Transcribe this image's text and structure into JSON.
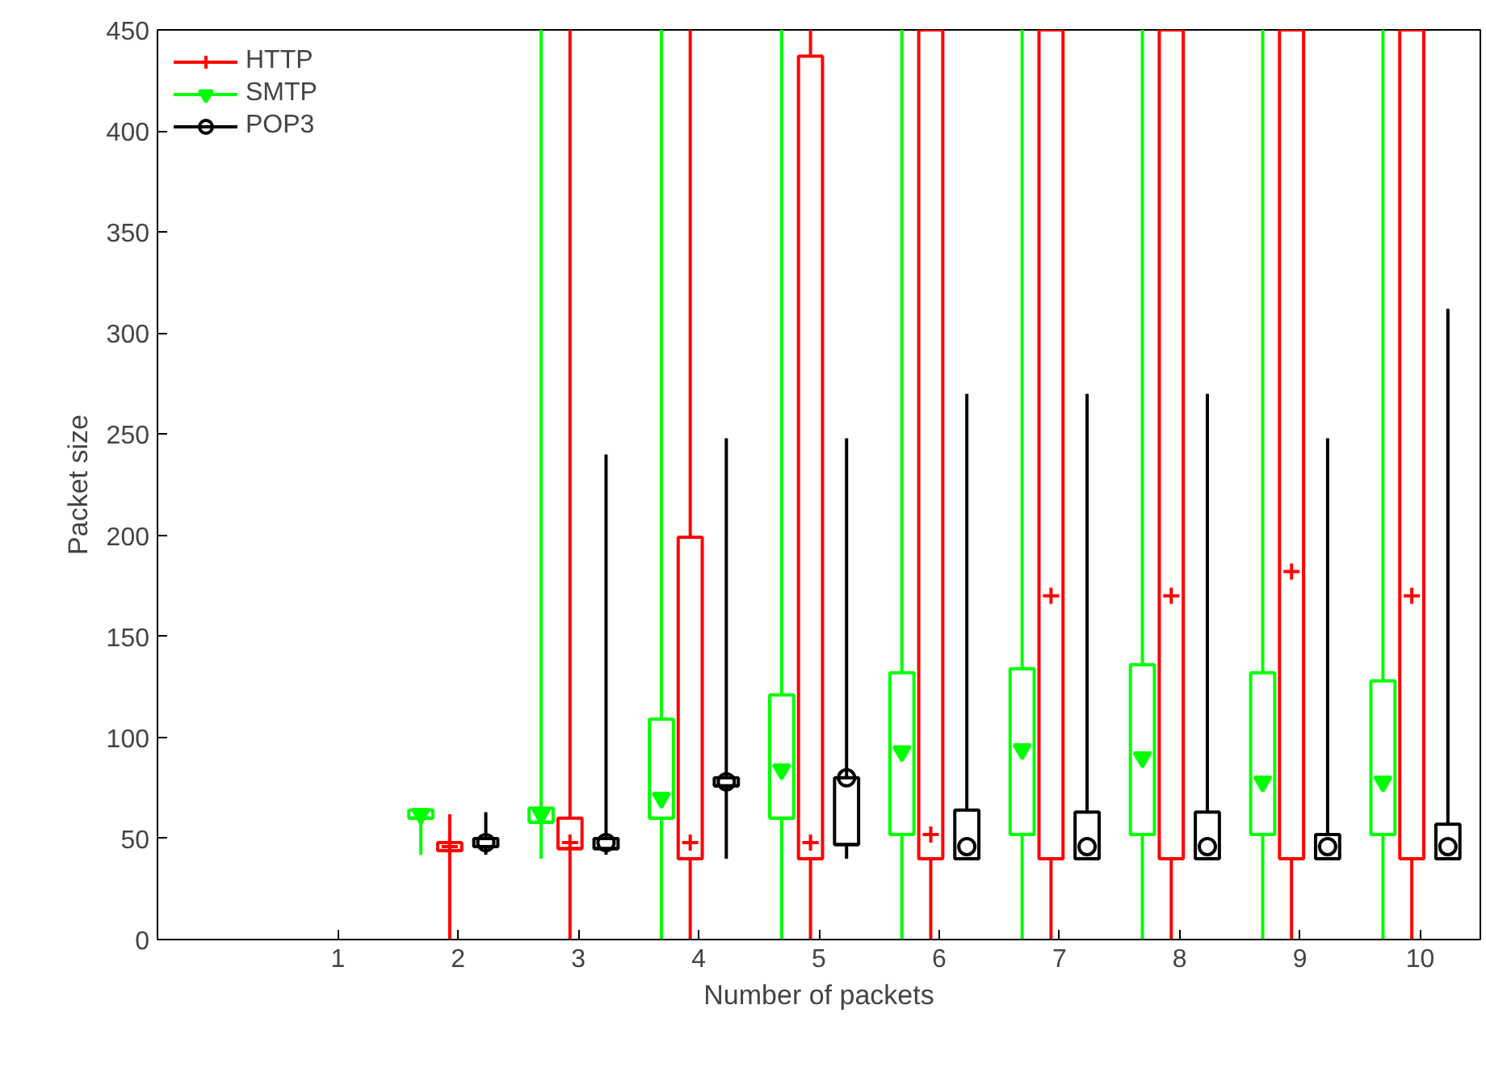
{
  "chart_data": {
    "type": "box",
    "xlabel": "Number of packets",
    "ylabel": "Packet size",
    "categories": [
      null,
      "1",
      "2",
      "3",
      "4",
      "5",
      "6",
      "7",
      "8",
      "9",
      "10"
    ],
    "ylim": [
      0,
      450
    ],
    "yticks": [
      0,
      50,
      100,
      150,
      200,
      250,
      300,
      350,
      400,
      450
    ],
    "grid": false,
    "legend": "top left",
    "series": [
      {
        "name": "HTTP",
        "color": "#ff0000",
        "marker": "cross",
        "boxes": [
          null,
          null,
          {
            "low": 0,
            "q1": 44,
            "median": 44,
            "q3": 48,
            "high": 62,
            "mean": 46
          },
          {
            "low": 0,
            "q1": 45,
            "median": 45,
            "q3": 60,
            "high": 450,
            "mean": 48
          },
          {
            "low": 0,
            "q1": 40,
            "median": 40,
            "q3": 199,
            "high": 450,
            "mean": 48
          },
          {
            "low": 0,
            "q1": 40,
            "median": 40,
            "q3": 437,
            "high": 450,
            "mean": 48
          },
          {
            "low": 0,
            "q1": 40,
            "median": 40,
            "q3": 450,
            "high": 450,
            "mean": 52
          },
          {
            "low": 0,
            "q1": 40,
            "median": 40,
            "q3": 450,
            "high": 450,
            "mean": 170
          },
          {
            "low": 0,
            "q1": 40,
            "median": 40,
            "q3": 450,
            "high": 450,
            "mean": 170
          },
          {
            "low": 0,
            "q1": 40,
            "median": 40,
            "q3": 450,
            "high": 450,
            "mean": 182
          },
          {
            "low": 0,
            "q1": 40,
            "median": 40,
            "q3": 450,
            "high": 450,
            "mean": 170
          }
        ]
      },
      {
        "name": "SMTP",
        "color": "#00ff00",
        "marker": "triangle",
        "boxes": [
          null,
          null,
          {
            "low": 42,
            "q1": 60,
            "median": 60,
            "q3": 64,
            "high": 64,
            "mean": 62
          },
          {
            "low": 40,
            "q1": 58,
            "median": 58,
            "q3": 65,
            "high": 450,
            "mean": 62
          },
          {
            "low": 0,
            "q1": 60,
            "median": 60,
            "q3": 109,
            "high": 450,
            "mean": 70
          },
          {
            "low": 0,
            "q1": 60,
            "median": 60,
            "q3": 121,
            "high": 450,
            "mean": 84
          },
          {
            "low": 0,
            "q1": 52,
            "median": 52,
            "q3": 132,
            "high": 450,
            "mean": 93
          },
          {
            "low": 0,
            "q1": 52,
            "median": 52,
            "q3": 134,
            "high": 450,
            "mean": 94
          },
          {
            "low": 0,
            "q1": 52,
            "median": 52,
            "q3": 136,
            "high": 450,
            "mean": 90
          },
          {
            "low": 0,
            "q1": 52,
            "median": 52,
            "q3": 132,
            "high": 450,
            "mean": 78
          },
          {
            "low": 0,
            "q1": 52,
            "median": 52,
            "q3": 128,
            "high": 450,
            "mean": 78
          }
        ]
      },
      {
        "name": "POP3",
        "color": "#000000",
        "marker": "circle",
        "boxes": [
          null,
          null,
          {
            "low": 42,
            "q1": 46,
            "median": 46,
            "q3": 50,
            "high": 63,
            "mean": 48
          },
          {
            "low": 42,
            "q1": 45,
            "median": 45,
            "q3": 50,
            "high": 240,
            "mean": 48
          },
          {
            "low": 40,
            "q1": 76,
            "median": 76,
            "q3": 80,
            "high": 248,
            "mean": 78
          },
          {
            "low": 40,
            "q1": 47,
            "median": 47,
            "q3": 80,
            "high": 248,
            "mean": 80
          },
          {
            "low": 40,
            "q1": 40,
            "median": 40,
            "q3": 64,
            "high": 270,
            "mean": 46
          },
          {
            "low": 40,
            "q1": 40,
            "median": 40,
            "q3": 63,
            "high": 270,
            "mean": 46
          },
          {
            "low": 40,
            "q1": 40,
            "median": 40,
            "q3": 63,
            "high": 270,
            "mean": 46
          },
          {
            "low": 40,
            "q1": 40,
            "median": 40,
            "q3": 52,
            "high": 248,
            "mean": 46
          },
          {
            "low": 40,
            "q1": 40,
            "median": 40,
            "q3": 57,
            "high": 312,
            "mean": 46
          }
        ]
      }
    ]
  }
}
